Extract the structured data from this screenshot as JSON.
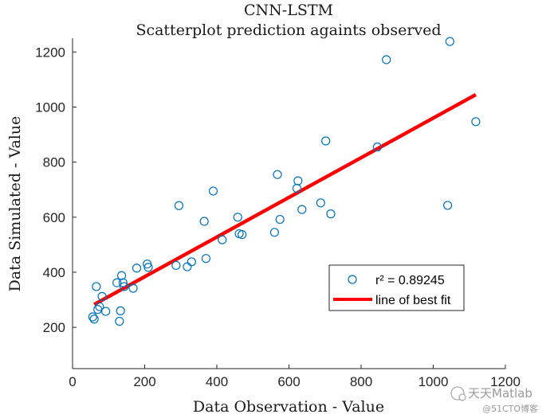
{
  "chart_data": {
    "type": "scatter",
    "title": "CNN-LSTM",
    "subtitle": "Scatterplot prediction againts observed",
    "xlabel": "Data Observation - Value",
    "ylabel": "Data Simulated - Value",
    "xlim": [
      0,
      1200
    ],
    "ylim": [
      50,
      1250
    ],
    "xticks": [
      0,
      200,
      400,
      600,
      800,
      1000,
      1200
    ],
    "yticks": [
      200,
      400,
      600,
      800,
      1000,
      1200
    ],
    "grid": false,
    "legend_position": "lower-right",
    "series": [
      {
        "name": "r^2 = 0.89245",
        "marker": "circle",
        "color": "#0072BD",
        "points": [
          [
            56,
            238
          ],
          [
            60,
            230
          ],
          [
            66,
            348
          ],
          [
            70,
            265
          ],
          [
            75,
            275
          ],
          [
            82,
            312
          ],
          [
            92,
            258
          ],
          [
            123,
            362
          ],
          [
            130,
            222
          ],
          [
            133,
            260
          ],
          [
            136,
            388
          ],
          [
            140,
            362
          ],
          [
            143,
            348
          ],
          [
            168,
            342
          ],
          [
            178,
            415
          ],
          [
            207,
            430
          ],
          [
            210,
            418
          ],
          [
            287,
            425
          ],
          [
            295,
            642
          ],
          [
            318,
            420
          ],
          [
            330,
            438
          ],
          [
            365,
            585
          ],
          [
            370,
            450
          ],
          [
            390,
            695
          ],
          [
            415,
            518
          ],
          [
            458,
            600
          ],
          [
            462,
            540
          ],
          [
            470,
            537
          ],
          [
            560,
            545
          ],
          [
            568,
            755
          ],
          [
            575,
            592
          ],
          [
            622,
            705
          ],
          [
            625,
            732
          ],
          [
            636,
            628
          ],
          [
            688,
            652
          ],
          [
            702,
            877
          ],
          [
            716,
            612
          ],
          [
            845,
            855
          ],
          [
            870,
            1172
          ],
          [
            1040,
            643
          ],
          [
            1046,
            1238
          ],
          [
            1118,
            947
          ]
        ]
      },
      {
        "name": "line of best fit",
        "type": "line",
        "color": "#FF0000",
        "points": [
          [
            60,
            283
          ],
          [
            1118,
            1045
          ]
        ]
      }
    ]
  },
  "legend": {
    "r2_label": "r² = 0.89245",
    "fit_label": "line of best fit"
  },
  "watermark": {
    "brand": "天天Matlab",
    "site": "@51CTO博客"
  }
}
